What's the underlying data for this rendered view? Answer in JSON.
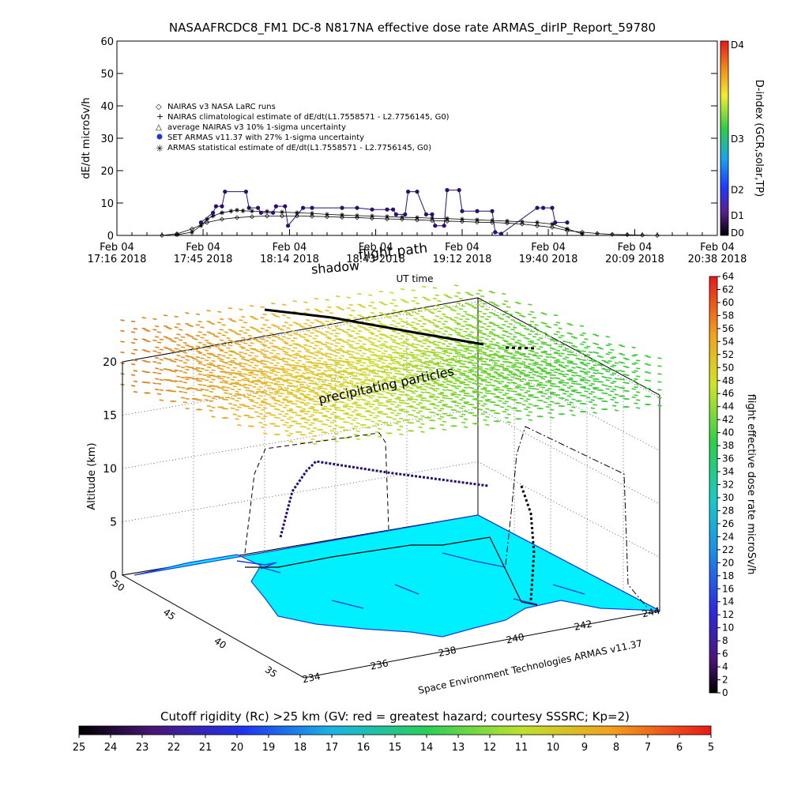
{
  "title": "NASAAFRCDC8_FM1 DC-8    N817NA effective dose rate ARMAS_dirIP_Report_59780",
  "chart_data": [
    {
      "type": "line",
      "ylabel": "dE/dt microSv/h",
      "xlabel": "UT time",
      "ylim": [
        0,
        60
      ],
      "yticks": [
        0,
        10,
        20,
        30,
        40,
        50,
        60
      ],
      "xlim": [
        0,
        200
      ],
      "xticks": [
        {
          "x": 0,
          "date": "Feb 04",
          "time": "17:16  2018"
        },
        {
          "x": 28.7,
          "date": "Feb 04",
          "time": "17:45  2018"
        },
        {
          "x": 57.5,
          "date": "Feb 04",
          "time": "18:14  2018"
        },
        {
          "x": 86.2,
          "date": "Feb 04",
          "time": "18:43  2018"
        },
        {
          "x": 115,
          "date": "Feb 04",
          "time": "19:12  2018"
        },
        {
          "x": 143.7,
          "date": "Feb 04",
          "time": "19:40  2018"
        },
        {
          "x": 172.5,
          "date": "Feb 04",
          "time": "20:09  2018"
        },
        {
          "x": 200,
          "date": "Feb 04",
          "time": "20:38  2018"
        }
      ],
      "annotations": [
        "flight path",
        "shadow"
      ],
      "right_colorbar": {
        "label": "D-index (GCR,solar,TP)",
        "ticks": [
          {
            "label": "D4",
            "frac": 1.0
          },
          {
            "label": "D3",
            "frac": 0.5
          },
          {
            "label": "D2",
            "frac": 0.237
          },
          {
            "label": "D1",
            "frac": 0.105
          },
          {
            "label": "D0",
            "frac": 0.0
          }
        ]
      },
      "legend": [
        {
          "symbol": "diamond",
          "label": "NAIRAS v3 NASA LaRC runs"
        },
        {
          "symbol": "plus",
          "label": "NAIRAS climatological estimate of dE/dt(L1.7558571 - L2.7756145, G0)"
        },
        {
          "symbol": "triangle",
          "label": "average NAIRAS v3 10% 1-sigma uncertainty"
        },
        {
          "symbol": "filled-circle",
          "label": "SET ARMAS v11.37 with 27% 1-sigma uncertainty",
          "color": "#1c39d8"
        },
        {
          "symbol": "asterisk",
          "label": "ARMAS statistical estimate of dE/dt(L1.7558571 - L2.7756145, G0)"
        }
      ],
      "series": [
        {
          "marker": "asterisk",
          "x": [
            20,
            25,
            28,
            30,
            32,
            35,
            38,
            40,
            42,
            45,
            50,
            55,
            60,
            65,
            70,
            75,
            80,
            85,
            90,
            95,
            100,
            105,
            110,
            115,
            120,
            125,
            130,
            135,
            140,
            145,
            150,
            155
          ],
          "y": [
            0.2,
            1,
            3,
            5,
            6,
            7,
            7.5,
            7.8,
            7.6,
            7.5,
            7.4,
            7.2,
            7.0,
            6.8,
            6.5,
            6.3,
            6.1,
            6.0,
            5.8,
            5.6,
            5.5,
            5.3,
            5.2,
            5.0,
            4.8,
            4.6,
            4.4,
            4.2,
            4.0,
            3.5,
            2.0,
            0.5
          ]
        },
        {
          "marker": "filled-circle",
          "color": "#2a0f6e",
          "x": [
            28,
            32,
            33,
            35,
            36,
            43,
            44,
            47,
            48,
            52,
            53,
            56,
            57,
            62,
            65,
            75,
            80,
            85,
            90,
            92,
            93,
            96,
            97,
            100,
            103,
            105,
            106,
            109,
            110,
            114,
            115,
            120,
            125,
            126,
            128,
            140,
            142,
            145,
            146,
            150
          ],
          "y": [
            4,
            7,
            9,
            9,
            13.5,
            13.5,
            8.5,
            8.5,
            7,
            7,
            9,
            9,
            3,
            8.5,
            8.5,
            8.5,
            8.5,
            8,
            8,
            8,
            6.5,
            6.5,
            13.5,
            13.5,
            6.5,
            6.5,
            3,
            3,
            14,
            14,
            7.5,
            7.5,
            7.5,
            1,
            0.5,
            8.5,
            8.5,
            8.5,
            4,
            4
          ]
        },
        {
          "marker": "diamond",
          "x": [
            15,
            20,
            25,
            30,
            35,
            40,
            45,
            50,
            55,
            60,
            65,
            70,
            75,
            80,
            85,
            90,
            95,
            100,
            105,
            110,
            115,
            120,
            125,
            130,
            135,
            140,
            145,
            150,
            155,
            160,
            165,
            170,
            175,
            180
          ],
          "y": [
            0,
            0.5,
            2,
            4,
            5,
            5.5,
            5.8,
            6,
            6,
            6,
            5.9,
            5.8,
            5.6,
            5.5,
            5.3,
            5.1,
            5.0,
            4.8,
            4.6,
            4.4,
            4.3,
            4.1,
            4.0,
            3.8,
            3.5,
            3.0,
            2.5,
            1.5,
            1.0,
            0.6,
            0.3,
            0.2,
            0.1,
            0
          ]
        }
      ]
    },
    {
      "type": "scatter",
      "ylabel": "Altitude (km)",
      "zticks": [
        0,
        5,
        10,
        15,
        20
      ],
      "lat_ticks": [
        "50",
        "45",
        "40",
        "35"
      ],
      "lon_ticks": [
        "234",
        "236",
        "238",
        "240",
        "242",
        "244"
      ],
      "annotation": "precipitating particles",
      "credit": "Space Environment Technologies ARMAS v11.37",
      "right_colorbar": {
        "label": "flight effective dose rate microSv/h",
        "ticks": [
          "0",
          "2",
          "4",
          "6",
          "8",
          "10",
          "12",
          "14",
          "16",
          "18",
          "20",
          "22",
          "24",
          "26",
          "28",
          "30",
          "32",
          "34",
          "36",
          "38",
          "40",
          "42",
          "44",
          "46",
          "48",
          "50",
          "52",
          "54",
          "56",
          "58",
          "60",
          "62",
          "64"
        ]
      }
    },
    {
      "type": "heatmap",
      "title": "Cutoff rigidity (Rc) >25 km (GV: red = greatest hazard; courtesy SSSRC; Kp=2)",
      "ticks": [
        "25",
        "24",
        "23",
        "22",
        "21",
        "20",
        "19",
        "18",
        "17",
        "16",
        "15",
        "14",
        "13",
        "12",
        "11",
        "10",
        "9",
        "8",
        "7",
        "6",
        "5"
      ]
    }
  ]
}
